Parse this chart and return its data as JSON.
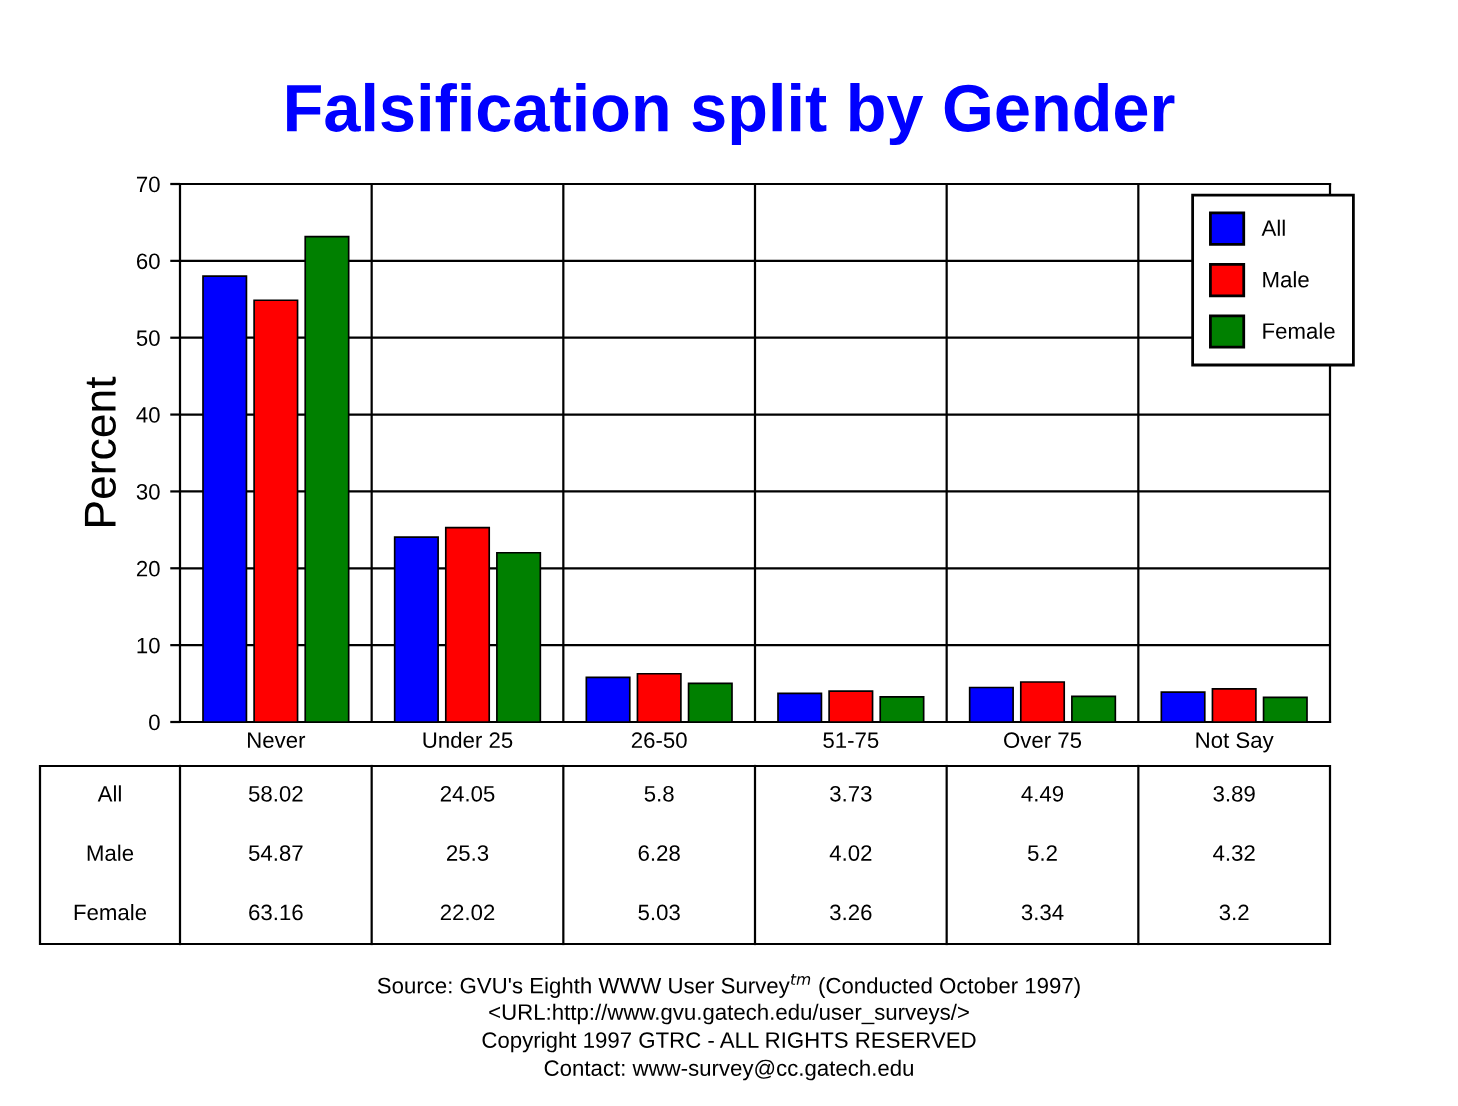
{
  "chart_data": {
    "type": "bar",
    "title": "Falsification split by Gender",
    "ylabel": "Percent",
    "categories": [
      "Never",
      "Under 25",
      "26-50",
      "51-75",
      "Over 75",
      "Not Say"
    ],
    "series": [
      {
        "name": "All",
        "color": "#0000ff",
        "values": [
          58.02,
          24.05,
          5.8,
          3.73,
          4.49,
          3.89
        ]
      },
      {
        "name": "Male",
        "color": "#ff0000",
        "values": [
          54.87,
          25.3,
          6.28,
          4.02,
          5.2,
          4.32
        ]
      },
      {
        "name": "Female",
        "color": "#008000",
        "values": [
          63.16,
          22.02,
          5.03,
          3.26,
          3.34,
          3.2
        ]
      }
    ],
    "ylim": [
      0,
      70
    ],
    "yticks": [
      0,
      10,
      20,
      30,
      40,
      50,
      60,
      70
    ],
    "grid": true,
    "legend": "top right",
    "data_labels": true,
    "annotations": [
      "Source: GVU's Eighth WWW User Survey$^{tm}$ (Conducted October 1997)",
      "<URL:http://www.gvu.gatech.edu/user_surveys/>",
      "Copyright 1997 GTRC - ALL RIGHTS RESERVED",
      "Contact: www-survey@cc.gatech.edu"
    ]
  }
}
